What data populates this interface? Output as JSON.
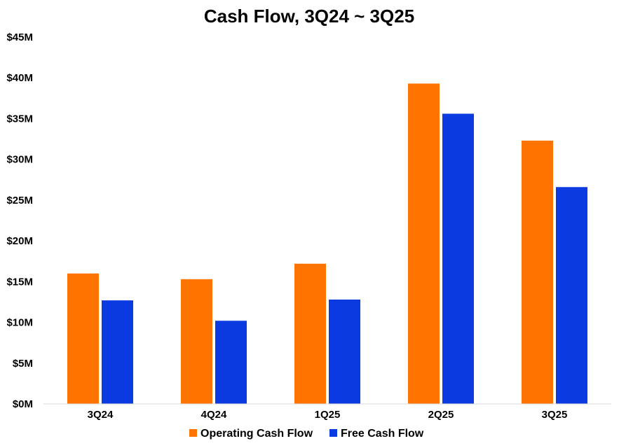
{
  "chart_data": {
    "type": "bar",
    "title": "Cash Flow, 3Q24 ~ 3Q25",
    "xlabel": "",
    "ylabel": "",
    "categories": [
      "3Q24",
      "4Q24",
      "1Q25",
      "2Q25",
      "3Q25"
    ],
    "series": [
      {
        "name": "Operating Cash Flow",
        "color": "#ff7300",
        "values": [
          16.0,
          15.3,
          17.2,
          39.3,
          32.3
        ]
      },
      {
        "name": "Free Cash Flow",
        "color": "#0b3ae0",
        "values": [
          12.7,
          10.2,
          12.8,
          35.6,
          26.6
        ]
      }
    ],
    "ylim": [
      0,
      45
    ],
    "yticks": [
      0,
      5,
      10,
      15,
      20,
      25,
      30,
      35,
      40,
      45
    ],
    "ytick_labels": [
      "$0M",
      "$5M",
      "$10M",
      "$15M",
      "$20M",
      "$25M",
      "$30M",
      "$35M",
      "$40M",
      "$45M"
    ],
    "unit": "$M",
    "grid": false,
    "legend_position": "bottom-center"
  }
}
